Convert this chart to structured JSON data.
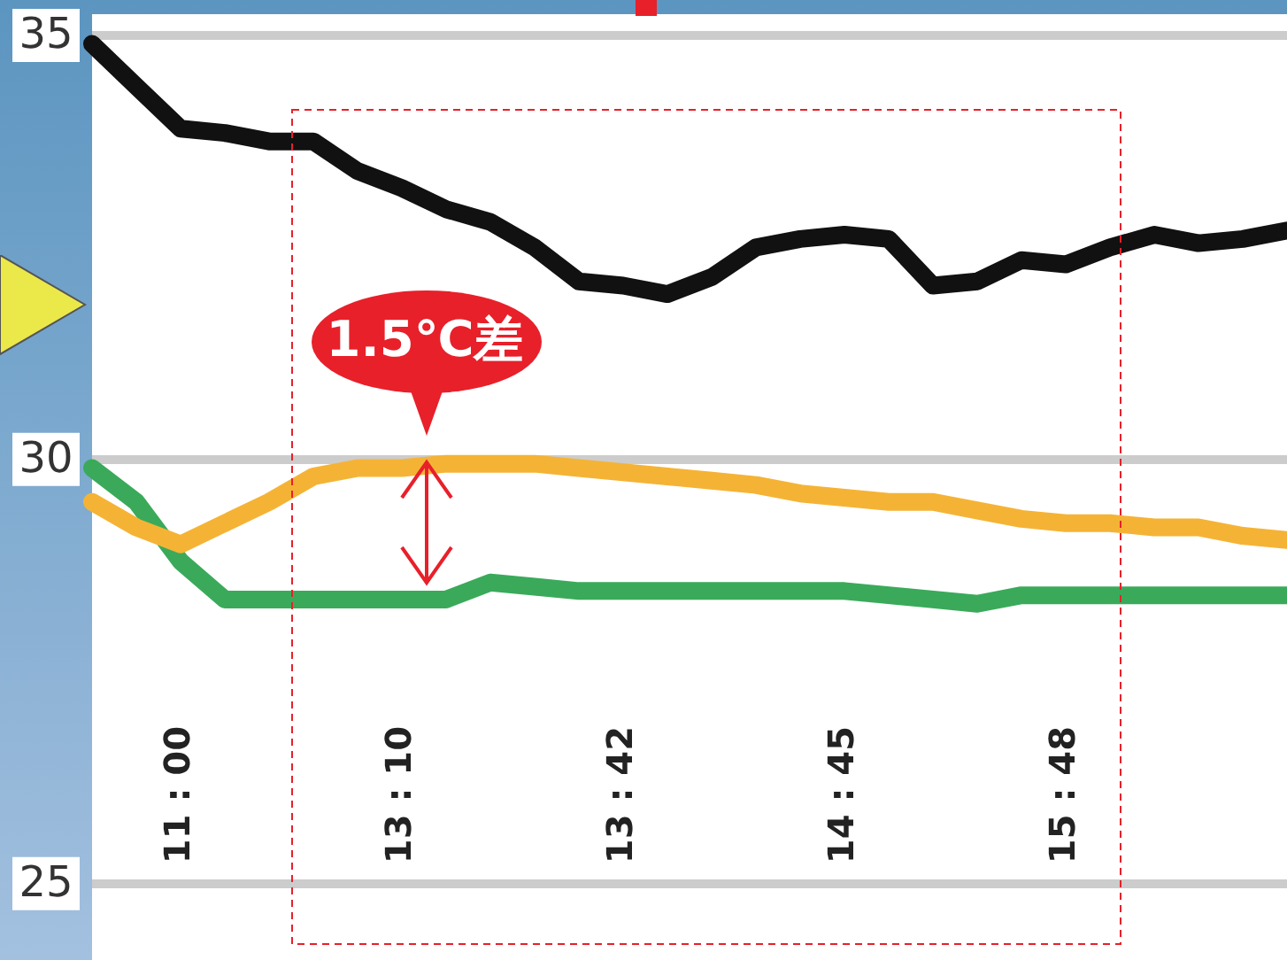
{
  "chart_data": {
    "type": "line",
    "categories": [
      null,
      null,
      "11 : 00",
      null,
      null,
      null,
      null,
      "13 : 10",
      null,
      null,
      null,
      null,
      "13 : 42",
      null,
      null,
      null,
      null,
      "14 : 45",
      null,
      null,
      null,
      null,
      "15 : 48",
      null,
      null,
      null,
      null,
      null
    ],
    "series": [
      {
        "color": "#111111",
        "values": [
          34.9,
          34.4,
          33.9,
          33.85,
          33.75,
          33.75,
          33.4,
          33.2,
          32.95,
          32.8,
          32.5,
          32.1,
          32.05,
          31.95,
          32.15,
          32.5,
          32.6,
          32.65,
          32.6,
          32.05,
          32.1,
          32.35,
          32.3,
          32.5,
          32.65,
          32.55,
          32.6,
          32.7
        ]
      },
      {
        "color": "#f5b335",
        "values": [
          29.5,
          29.2,
          29.0,
          29.25,
          29.5,
          29.8,
          29.9,
          29.9,
          29.95,
          29.95,
          29.95,
          29.9,
          29.85,
          29.8,
          29.75,
          29.7,
          29.6,
          29.55,
          29.5,
          29.5,
          29.4,
          29.3,
          29.25,
          29.25,
          29.2,
          29.2,
          29.1,
          29.05
        ]
      },
      {
        "color": "#3aaa5a",
        "values": [
          29.9,
          29.5,
          28.8,
          28.35,
          28.35,
          28.35,
          28.35,
          28.35,
          28.35,
          28.55,
          28.5,
          28.45,
          28.45,
          28.45,
          28.45,
          28.45,
          28.45,
          28.45,
          28.4,
          28.35,
          28.3,
          28.4,
          28.4,
          28.4,
          28.4,
          28.4,
          28.4,
          28.4
        ]
      }
    ],
    "ylim": [
      24.1,
      35.25
    ],
    "yticks": [
      25,
      30,
      35
    ],
    "grid": "y",
    "marker": "none",
    "annotations": [
      "1.5℃差"
    ]
  }
}
